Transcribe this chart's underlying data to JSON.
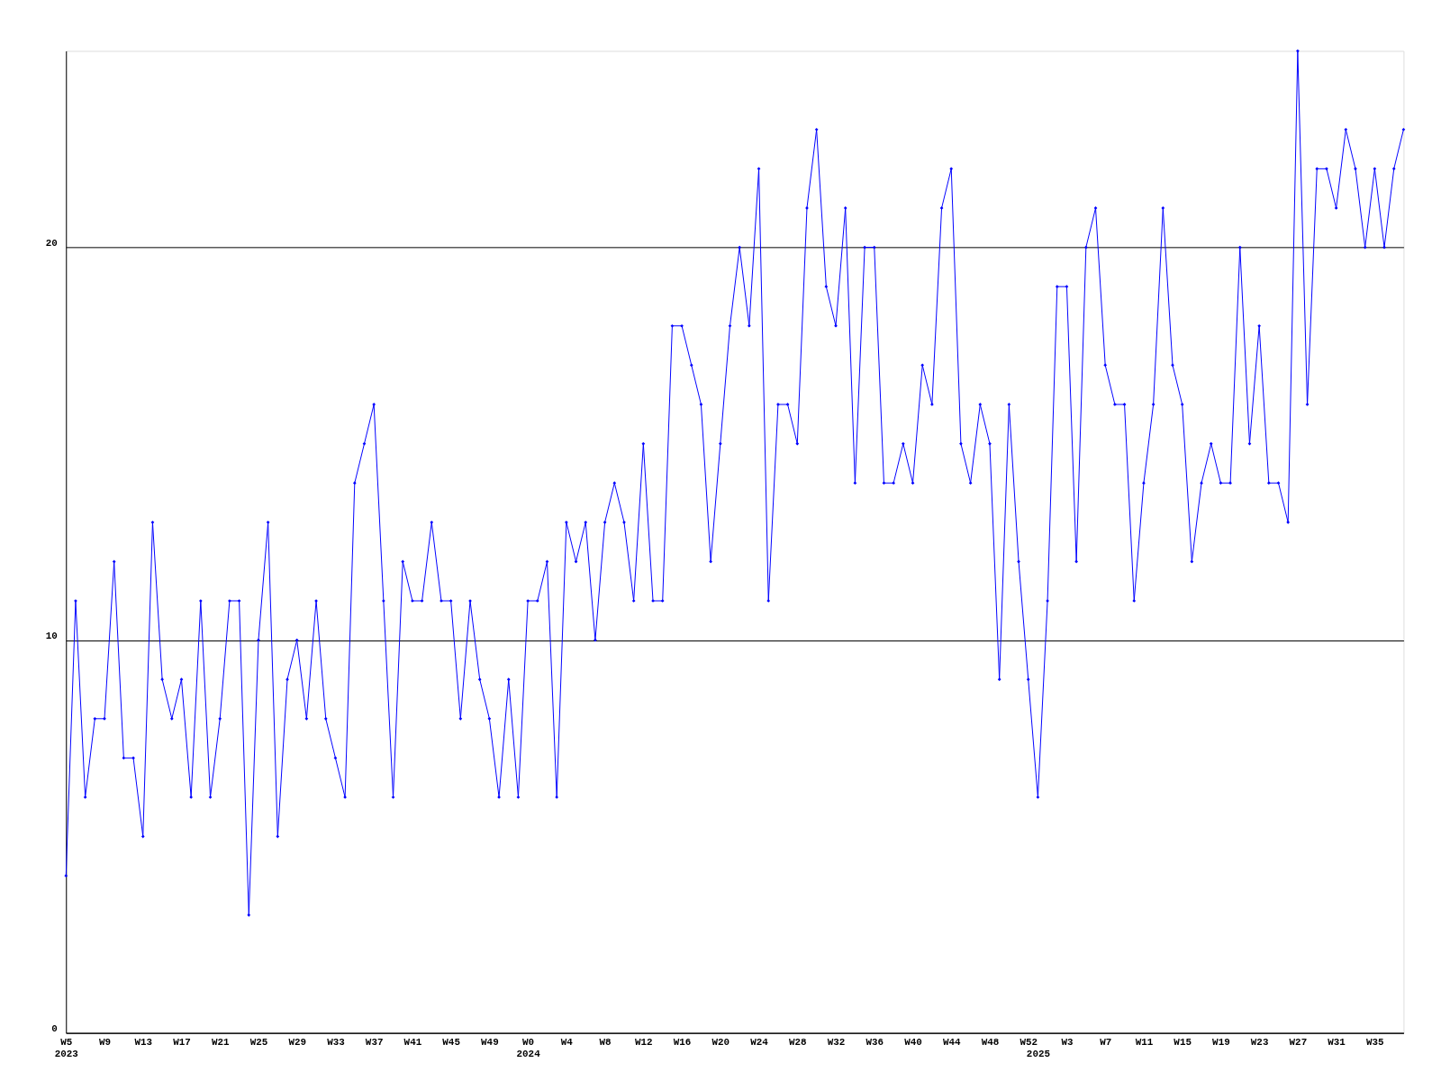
{
  "chart_data": {
    "type": "line",
    "categories": [
      "W5\n2023",
      null,
      null,
      null,
      "W9",
      null,
      null,
      null,
      "W13",
      null,
      null,
      null,
      "W17",
      null,
      null,
      null,
      "W21",
      null,
      null,
      null,
      "W25",
      null,
      null,
      null,
      "W29",
      null,
      null,
      null,
      "W33",
      null,
      null,
      null,
      "W37",
      null,
      null,
      null,
      "W41",
      null,
      null,
      null,
      "W45",
      null,
      null,
      null,
      "W49",
      null,
      null,
      null,
      "W0\n2024",
      null,
      null,
      null,
      "W4",
      null,
      null,
      null,
      "W8",
      null,
      null,
      null,
      "W12",
      null,
      null,
      null,
      "W16",
      null,
      null,
      null,
      "W20",
      null,
      null,
      null,
      "W24",
      null,
      null,
      null,
      "W28",
      null,
      null,
      null,
      "W32",
      null,
      null,
      null,
      "W36",
      null,
      null,
      null,
      "W40",
      null,
      null,
      null,
      "W44",
      null,
      null,
      null,
      "W48",
      null,
      null,
      null,
      "W52",
      "\n2025",
      null,
      null,
      "W3",
      null,
      null,
      null,
      "W7",
      null,
      null,
      null,
      "W11",
      null,
      null,
      null,
      "W15",
      null,
      null,
      null,
      "W19",
      null,
      null,
      null,
      "W23",
      null,
      null,
      null,
      "W27",
      null,
      null,
      null,
      "W31",
      null,
      null,
      null,
      "W35",
      null,
      null,
      null
    ],
    "series": [
      {
        "color": "#0000ff",
        "values": [
          4,
          11,
          6,
          8,
          8,
          12,
          7,
          7,
          5,
          13,
          9,
          8,
          9,
          6,
          11,
          6,
          8,
          11,
          11,
          3,
          10,
          13,
          5,
          9,
          10,
          8,
          11,
          8,
          7,
          6,
          14,
          15,
          16,
          11,
          6,
          12,
          11,
          11,
          13,
          11,
          11,
          8,
          11,
          9,
          8,
          6,
          9,
          6,
          11,
          11,
          12,
          6,
          13,
          12,
          13,
          10,
          13,
          14,
          13,
          11,
          15,
          11,
          11,
          18,
          18,
          17,
          16,
          12,
          15,
          18,
          20,
          18,
          22,
          11,
          16,
          16,
          15,
          21,
          23,
          19,
          18,
          21,
          14,
          20,
          20,
          14,
          14,
          15,
          14,
          17,
          16,
          21,
          22,
          15,
          14,
          16,
          15,
          9,
          16,
          12,
          9,
          6,
          11,
          19,
          19,
          12,
          20,
          21,
          17,
          16,
          16,
          11,
          14,
          16,
          21,
          17,
          16,
          12,
          14,
          15,
          14,
          14,
          20,
          15,
          18,
          14,
          14,
          13,
          25,
          16,
          22,
          22,
          21,
          23,
          22,
          20,
          22,
          20,
          22,
          23
        ]
      }
    ],
    "ylim": [
      0,
      25
    ],
    "yticks": [
      0,
      10,
      20
    ],
    "grid": "y",
    "marker": "diamond",
    "line_style": "solid"
  }
}
